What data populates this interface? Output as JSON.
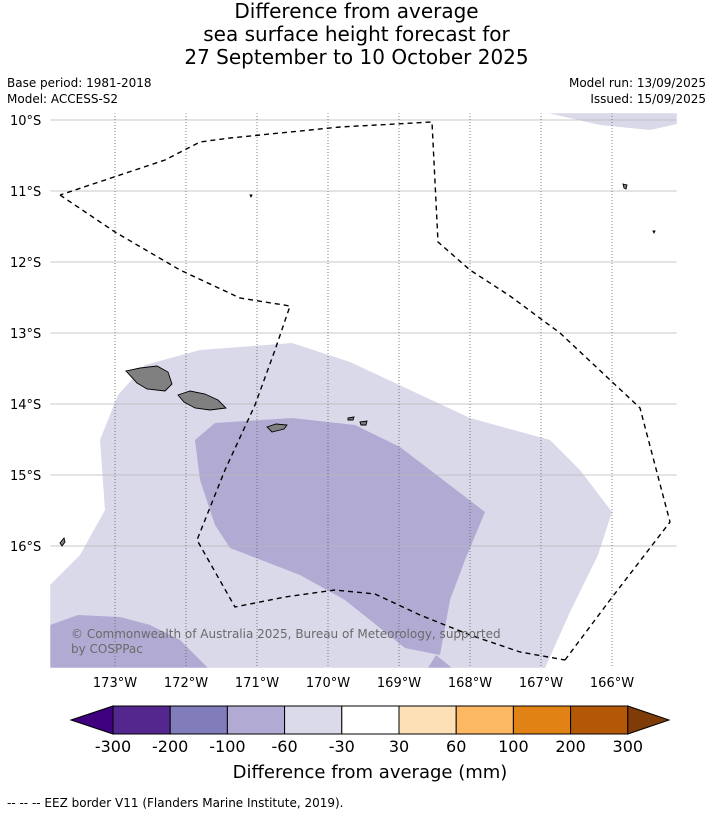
{
  "title": {
    "line1": "Difference from average",
    "line2": "sea surface height forecast for",
    "line3": "27 September to 10 October 2025"
  },
  "info": {
    "base_period": "Base period: 1981-2018",
    "model": "Model: ACCESS-S2",
    "model_run": "Model run: 13/09/2025",
    "issued": "Issued: 15/09/2025"
  },
  "map": {
    "lat_labels": [
      "10°S",
      "11°S",
      "12°S",
      "13°S",
      "14°S",
      "15°S",
      "16°S"
    ],
    "lon_labels": [
      "173°W",
      "172°W",
      "171°W",
      "170°W",
      "169°W",
      "168°W",
      "167°W",
      "166°W"
    ],
    "copyright": "© Commonwealth of Australia 2025, Bureau of Meteorology, supported",
    "copyright2": "by COSPPac",
    "colors": {
      "land": "#808080",
      "ocean": "#ffffff",
      "gridline": "#b0b0b0"
    }
  },
  "colorbar": {
    "label": "Difference from average (mm)",
    "ticks": [
      "-300",
      "-200",
      "-100",
      "-60",
      "-30",
      "30",
      "60",
      "100",
      "200",
      "300"
    ],
    "colors": [
      "#3f007d",
      "#54278f",
      "#807dba",
      "#b1abd3",
      "#dadaeb",
      "#ffffff",
      "#fee0b6",
      "#fdb863",
      "#e08214",
      "#b35806",
      "#7f3b08"
    ]
  },
  "footer": {
    "legend": "--  --  -- EEZ border V11 (Flanders Marine Institute, 2019)."
  }
}
